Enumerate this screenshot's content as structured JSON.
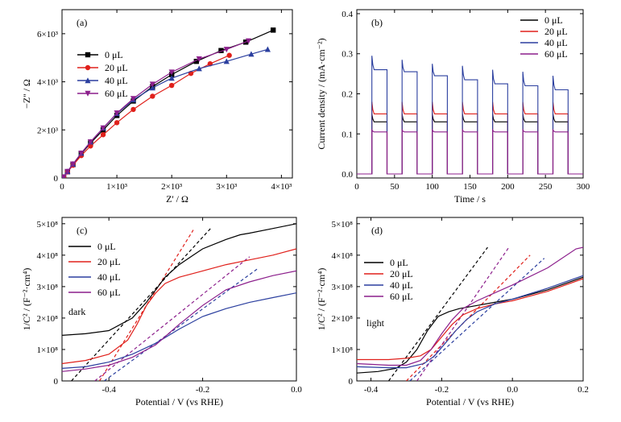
{
  "chart_data": [
    {
      "id": "a",
      "type": "scatter",
      "panel_label": "(a)",
      "xlabel": "Z' / Ω",
      "ylabel": "−Z'' / Ω",
      "xlim": [
        0,
        4200
      ],
      "ylim": [
        0,
        7000
      ],
      "x_ticks": [
        {
          "value": 0,
          "label": "0"
        },
        {
          "value": 1000,
          "label": "1×10³"
        },
        {
          "value": 2000,
          "label": "2×10³"
        },
        {
          "value": 3000,
          "label": "3×10³"
        },
        {
          "value": 4000,
          "label": "4×10³"
        }
      ],
      "y_ticks": [
        {
          "value": 0,
          "label": "0"
        },
        {
          "value": 2000,
          "label": "2×10³"
        },
        {
          "value": 4000,
          "label": "4×10³"
        },
        {
          "value": 6000,
          "label": "6×10³"
        }
      ],
      "legend_position": "upper-left",
      "series": [
        {
          "name": "0 μL",
          "color": "#000000",
          "marker": "square",
          "x": [
            30,
            100,
            200,
            350,
            520,
            750,
            1000,
            1300,
            1650,
            2000,
            2450,
            2900,
            3350,
            3850
          ],
          "y": [
            40,
            260,
            560,
            1000,
            1450,
            2000,
            2600,
            3200,
            3800,
            4300,
            4850,
            5300,
            5650,
            6150
          ]
        },
        {
          "name": "20 μL",
          "color": "#e0201b",
          "marker": "circle",
          "x": [
            30,
            100,
            200,
            350,
            520,
            750,
            1000,
            1300,
            1650,
            2000,
            2350,
            2700,
            3050
          ],
          "y": [
            40,
            250,
            530,
            930,
            1330,
            1800,
            2300,
            2850,
            3400,
            3850,
            4350,
            4750,
            5100
          ]
        },
        {
          "name": "40 μL",
          "color": "#2b3f9f",
          "marker": "triangle-up",
          "x": [
            30,
            100,
            200,
            350,
            520,
            750,
            1000,
            1300,
            1650,
            2000,
            2500,
            3000,
            3450,
            3750
          ],
          "y": [
            40,
            270,
            580,
            1030,
            1500,
            2080,
            2680,
            3250,
            3750,
            4150,
            4550,
            4850,
            5150,
            5350
          ]
        },
        {
          "name": "60 μL",
          "color": "#8c1f8c",
          "marker": "triangle-down",
          "x": [
            30,
            100,
            200,
            350,
            520,
            750,
            1000,
            1300,
            1650,
            2000,
            2500,
            3000,
            3400
          ],
          "y": [
            40,
            270,
            580,
            1030,
            1500,
            2080,
            2700,
            3300,
            3900,
            4400,
            4950,
            5350,
            5700
          ]
        }
      ]
    },
    {
      "id": "b",
      "type": "line",
      "panel_label": "(b)",
      "xlabel": "Time / s",
      "ylabel": "Current density / (mA·cm⁻²)",
      "xlim": [
        0,
        300
      ],
      "ylim": [
        -0.01,
        0.41
      ],
      "x_ticks": [
        {
          "value": 0,
          "label": "0"
        },
        {
          "value": 50,
          "label": "50"
        },
        {
          "value": 100,
          "label": "100"
        },
        {
          "value": 150,
          "label": "150"
        },
        {
          "value": 200,
          "label": "200"
        },
        {
          "value": 250,
          "label": "250"
        },
        {
          "value": 300,
          "label": "300"
        }
      ],
      "y_ticks": [
        {
          "value": 0.0,
          "label": "0.0"
        },
        {
          "value": 0.1,
          "label": "0.1"
        },
        {
          "value": 0.2,
          "label": "0.2"
        },
        {
          "value": 0.3,
          "label": "0.3"
        },
        {
          "value": 0.4,
          "label": "0.4"
        }
      ],
      "legend_position": "upper-right",
      "light_on_intervals": [
        [
          20,
          40
        ],
        [
          60,
          80
        ],
        [
          100,
          120
        ],
        [
          140,
          160
        ],
        [
          180,
          200
        ],
        [
          220,
          240
        ],
        [
          260,
          280
        ]
      ],
      "series": [
        {
          "name": "0 μL",
          "color": "#000000",
          "peak": 0.15,
          "plateau": 0.13
        },
        {
          "name": "20 μL",
          "color": "#e0201b",
          "peak": 0.18,
          "plateau": 0.15
        },
        {
          "name": "40 μL",
          "color": "#2b3f9f",
          "peak": [
            0.295,
            0.285,
            0.275,
            0.27,
            0.26,
            0.255,
            0.245
          ],
          "plateau": [
            0.26,
            0.255,
            0.245,
            0.235,
            0.225,
            0.22,
            0.21
          ]
        },
        {
          "name": "60 μL",
          "color": "#8c1f8c",
          "peak": 0.11,
          "plateau": 0.105
        }
      ]
    },
    {
      "id": "c",
      "type": "line",
      "panel_label": "(c)",
      "note": "dark",
      "xlabel": "Potential / V (vs RHE)",
      "ylabel": "1/C² / (F⁻²·cm⁴)",
      "xlim": [
        -0.5,
        0.0
      ],
      "ylim": [
        0,
        520000000
      ],
      "x_ticks": [
        {
          "value": -0.4,
          "label": "-0.4"
        },
        {
          "value": -0.2,
          "label": "-0.2"
        },
        {
          "value": 0.0,
          "label": "0.0"
        }
      ],
      "y_ticks": [
        {
          "value": 0,
          "label": "0"
        },
        {
          "value": 100000000,
          "label": "1×10⁸"
        },
        {
          "value": 200000000,
          "label": "2×10⁸"
        },
        {
          "value": 300000000,
          "label": "3×10⁸"
        },
        {
          "value": 400000000,
          "label": "4×10⁸"
        },
        {
          "value": 500000000,
          "label": "5×10⁸"
        }
      ],
      "legend_position": "upper-left",
      "series": [
        {
          "name": "0 μL",
          "color": "#000000",
          "x": [
            -0.5,
            -0.45,
            -0.4,
            -0.35,
            -0.32,
            -0.3,
            -0.28,
            -0.25,
            -0.22,
            -0.2,
            -0.15,
            -0.12,
            -0.1,
            -0.05,
            0.0
          ],
          "y": [
            145000000,
            150000000,
            160000000,
            200000000,
            250000000,
            290000000,
            330000000,
            370000000,
            400000000,
            420000000,
            450000000,
            465000000,
            470000000,
            485000000,
            500000000
          ]
        },
        {
          "name": "20 μL",
          "color": "#e0201b",
          "x": [
            -0.5,
            -0.45,
            -0.4,
            -0.36,
            -0.34,
            -0.32,
            -0.3,
            -0.28,
            -0.25,
            -0.2,
            -0.15,
            -0.1,
            -0.05,
            0.0
          ],
          "y": [
            55000000,
            65000000,
            85000000,
            130000000,
            180000000,
            240000000,
            280000000,
            310000000,
            330000000,
            350000000,
            370000000,
            385000000,
            400000000,
            420000000
          ]
        },
        {
          "name": "40 μL",
          "color": "#2b3f9f",
          "x": [
            -0.5,
            -0.45,
            -0.4,
            -0.35,
            -0.3,
            -0.25,
            -0.2,
            -0.15,
            -0.1,
            -0.05,
            0.0
          ],
          "y": [
            40000000,
            45000000,
            60000000,
            85000000,
            120000000,
            165000000,
            205000000,
            230000000,
            250000000,
            265000000,
            280000000
          ]
        },
        {
          "name": "60 μL",
          "color": "#8c1f8c",
          "x": [
            -0.5,
            -0.45,
            -0.4,
            -0.35,
            -0.3,
            -0.25,
            -0.2,
            -0.15,
            -0.1,
            -0.05,
            0.0
          ],
          "y": [
            30000000,
            38000000,
            50000000,
            75000000,
            115000000,
            180000000,
            240000000,
            290000000,
            315000000,
            335000000,
            350000000
          ]
        }
      ],
      "fit_lines": [
        {
          "color": "#000000",
          "x": [
            -0.48,
            -0.18
          ],
          "y": [
            0,
            490000000
          ]
        },
        {
          "color": "#e0201b",
          "x": [
            -0.42,
            -0.22
          ],
          "y": [
            0,
            480000000
          ]
        },
        {
          "color": "#2b3f9f",
          "x": [
            -0.41,
            -0.08
          ],
          "y": [
            0,
            360000000
          ]
        },
        {
          "color": "#8c1f8c",
          "x": [
            -0.43,
            -0.1
          ],
          "y": [
            0,
            395000000
          ]
        }
      ]
    },
    {
      "id": "d",
      "type": "line",
      "panel_label": "(d)",
      "note": "light",
      "xlabel": "Potential / V (vs RHE)",
      "ylabel": "1/C² / (F⁻²·cm⁴)",
      "xlim": [
        -0.44,
        0.2
      ],
      "ylim": [
        0,
        520000000
      ],
      "x_ticks": [
        {
          "value": -0.4,
          "label": "-0.4"
        },
        {
          "value": -0.2,
          "label": "-0.2"
        },
        {
          "value": 0.0,
          "label": "0.0"
        },
        {
          "value": 0.2,
          "label": "0.2"
        }
      ],
      "y_ticks": [
        {
          "value": 0,
          "label": "0"
        },
        {
          "value": 100000000,
          "label": "1×10⁸"
        },
        {
          "value": 200000000,
          "label": "2×10⁸"
        },
        {
          "value": 300000000,
          "label": "3×10⁸"
        },
        {
          "value": 400000000,
          "label": "4×10⁸"
        },
        {
          "value": 500000000,
          "label": "5×10⁸"
        }
      ],
      "legend_position": "upper-left",
      "series": [
        {
          "name": "0 μL",
          "color": "#000000",
          "x": [
            -0.44,
            -0.38,
            -0.33,
            -0.3,
            -0.27,
            -0.24,
            -0.21,
            -0.18,
            -0.15,
            -0.1,
            -0.05,
            0.0,
            0.1,
            0.2
          ],
          "y": [
            25000000,
            30000000,
            40000000,
            60000000,
            100000000,
            160000000,
            205000000,
            220000000,
            230000000,
            240000000,
            250000000,
            260000000,
            290000000,
            330000000
          ]
        },
        {
          "name": "20 μL",
          "color": "#e0201b",
          "x": [
            -0.44,
            -0.35,
            -0.3,
            -0.26,
            -0.23,
            -0.2,
            -0.17,
            -0.14,
            -0.1,
            -0.05,
            0.0,
            0.1,
            0.2
          ],
          "y": [
            68000000,
            68000000,
            72000000,
            80000000,
            100000000,
            140000000,
            180000000,
            210000000,
            230000000,
            245000000,
            255000000,
            285000000,
            325000000
          ]
        },
        {
          "name": "40 μL",
          "color": "#2b3f9f",
          "x": [
            -0.44,
            -0.35,
            -0.3,
            -0.25,
            -0.22,
            -0.19,
            -0.16,
            -0.13,
            -0.1,
            -0.05,
            0.0,
            0.1,
            0.2
          ],
          "y": [
            45000000,
            42000000,
            42000000,
            55000000,
            80000000,
            120000000,
            160000000,
            195000000,
            220000000,
            245000000,
            260000000,
            295000000,
            335000000
          ]
        },
        {
          "name": "60 μL",
          "color": "#8c1f8c",
          "x": [
            -0.44,
            -0.35,
            -0.3,
            -0.26,
            -0.23,
            -0.2,
            -0.17,
            -0.14,
            -0.1,
            -0.05,
            0.0,
            0.1,
            0.18,
            0.2
          ],
          "y": [
            55000000,
            50000000,
            50000000,
            65000000,
            100000000,
            150000000,
            195000000,
            230000000,
            255000000,
            280000000,
            305000000,
            360000000,
            420000000,
            425000000
          ]
        }
      ],
      "fit_lines": [
        {
          "color": "#000000",
          "x": [
            -0.35,
            -0.07
          ],
          "y": [
            0,
            425000000
          ]
        },
        {
          "color": "#e0201b",
          "x": [
            -0.3,
            0.05
          ],
          "y": [
            0,
            400000000
          ]
        },
        {
          "color": "#2b3f9f",
          "x": [
            -0.29,
            0.09
          ],
          "y": [
            0,
            390000000
          ]
        },
        {
          "color": "#8c1f8c",
          "x": [
            -0.27,
            -0.01
          ],
          "y": [
            0,
            425000000
          ]
        }
      ]
    }
  ]
}
